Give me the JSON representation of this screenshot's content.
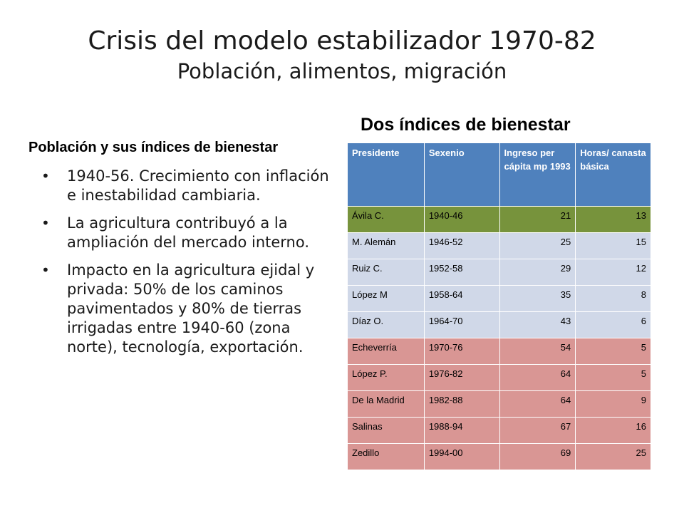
{
  "title": {
    "main": "Crisis del modelo estabilizador 1970-82",
    "sub": "Población, alimentos, migración"
  },
  "left": {
    "heading": "Población y sus índices de bienestar",
    "bullets": [
      "1940-56. Crecimiento con inflación e inestabilidad cambiaria.",
      "La agricultura contribuyó a la ampliación del mercado interno.",
      "Impacto en la agricultura ejidal y privada: 50% de los caminos pavimentados y 80% de tierras irrigadas entre 1940-60 (zona norte), tecnología, exportación."
    ]
  },
  "right": {
    "heading": "Dos índices de bienestar",
    "columns": [
      "Presidente",
      "Sexenio",
      "Ingreso per cápita mp 1993",
      "Horas/ canasta básica"
    ],
    "rows": [
      {
        "presidente": "Ávila C.",
        "sexenio": "1940-46",
        "ingreso": "21",
        "horas": "13",
        "color": "#77933c"
      },
      {
        "presidente": "M. Alemán",
        "sexenio": "1946-52",
        "ingreso": "25",
        "horas": "15",
        "color": "#d0d8e8"
      },
      {
        "presidente": "Ruiz C.",
        "sexenio": "1952-58",
        "ingreso": "29",
        "horas": "12",
        "color": "#d0d8e8"
      },
      {
        "presidente": "López M",
        "sexenio": "1958-64",
        "ingreso": "35",
        "horas": "8",
        "color": "#d0d8e8"
      },
      {
        "presidente": "Díaz O.",
        "sexenio": "1964-70",
        "ingreso": "43",
        "horas": "6",
        "color": "#d0d8e8"
      },
      {
        "presidente": "Echeverría",
        "sexenio": "1970-76",
        "ingreso": "54",
        "horas": "5",
        "color": "#d99694"
      },
      {
        "presidente": "López P.",
        "sexenio": "1976-82",
        "ingreso": "64",
        "horas": "5",
        "color": "#d99694"
      },
      {
        "presidente": "De la Madrid",
        "sexenio": "1982-88",
        "ingreso": "64",
        "horas": "9",
        "color": "#d99694"
      },
      {
        "presidente": "Salinas",
        "sexenio": "1988-94",
        "ingreso": "67",
        "horas": "16",
        "color": "#d99694"
      },
      {
        "presidente": "Zedillo",
        "sexenio": "1994-00",
        "ingreso": "69",
        "horas": "25",
        "color": "#d99694"
      }
    ]
  }
}
